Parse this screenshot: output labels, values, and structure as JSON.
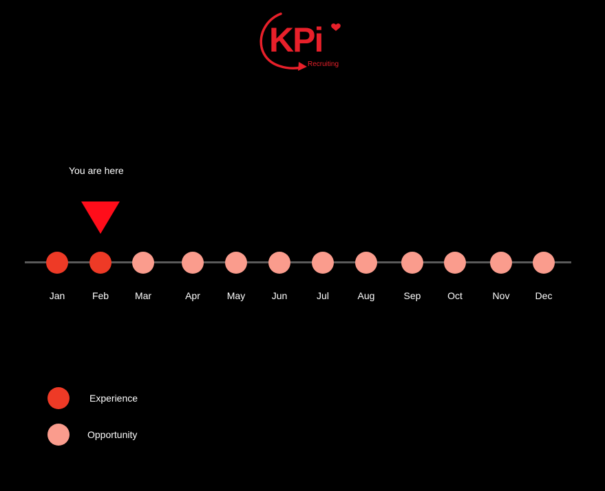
{
  "logo": {
    "text": "KPi",
    "subtitle": "Recruiting"
  },
  "marker": {
    "label": "You are here",
    "month_index": 1
  },
  "colors": {
    "experience": "#ee3a26",
    "opportunity": "#fa9c8d",
    "marker": "#ff0d1a",
    "track": "#5a5a5a",
    "brand": "#e8202a"
  },
  "timeline": {
    "months": [
      "Jan",
      "Feb",
      "Mar",
      "Apr",
      "May",
      "Jun",
      "Jul",
      "Aug",
      "Sep",
      "Oct",
      "Nov",
      "Dec"
    ],
    "status": [
      "experience",
      "experience",
      "opportunity",
      "opportunity",
      "opportunity",
      "opportunity",
      "opportunity",
      "opportunity",
      "opportunity",
      "opportunity",
      "opportunity",
      "opportunity"
    ]
  },
  "legend": {
    "experience": "Experience",
    "opportunity": "Opportunity"
  }
}
